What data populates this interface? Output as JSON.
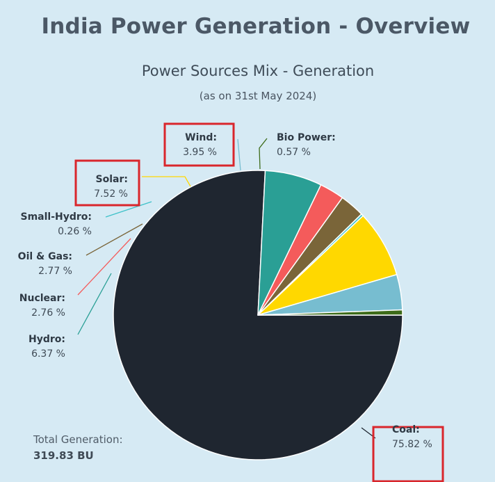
{
  "header": {
    "title": "India Power Generation - Overview"
  },
  "chart_data": {
    "type": "pie",
    "title": "Power Sources Mix - Generation",
    "subtitle": "(as on 31st May 2024)",
    "unit": "%",
    "slices": [
      {
        "name": "Coal",
        "value": 75.82,
        "value_text": "75.82 %",
        "color": "#1f2630",
        "highlighted": true
      },
      {
        "name": "Hydro",
        "value": 6.37,
        "value_text": "6.37 %",
        "color": "#2a9f95",
        "highlighted": false
      },
      {
        "name": "Nuclear",
        "value": 2.76,
        "value_text": "2.76 %",
        "color": "#f45b5b",
        "highlighted": false
      },
      {
        "name": "Oil & Gas",
        "value": 2.77,
        "value_text": "2.77 %",
        "color": "#7a6539",
        "highlighted": false
      },
      {
        "name": "Small-Hydro",
        "value": 0.26,
        "value_text": "0.26 %",
        "color": "#3ec2c9",
        "highlighted": false
      },
      {
        "name": "Solar",
        "value": 7.52,
        "value_text": "7.52 %",
        "color": "#ffd800",
        "highlighted": true
      },
      {
        "name": "Wind",
        "value": 3.95,
        "value_text": "3.95 %",
        "color": "#77bdd0",
        "highlighted": true
      },
      {
        "name": "Bio Power",
        "value": 0.57,
        "value_text": "0.57 %",
        "color": "#3d6b19",
        "highlighted": false
      }
    ],
    "highlight_color": "#d9262c",
    "total": {
      "label": "Total Generation:",
      "value": "319.83 BU"
    }
  }
}
